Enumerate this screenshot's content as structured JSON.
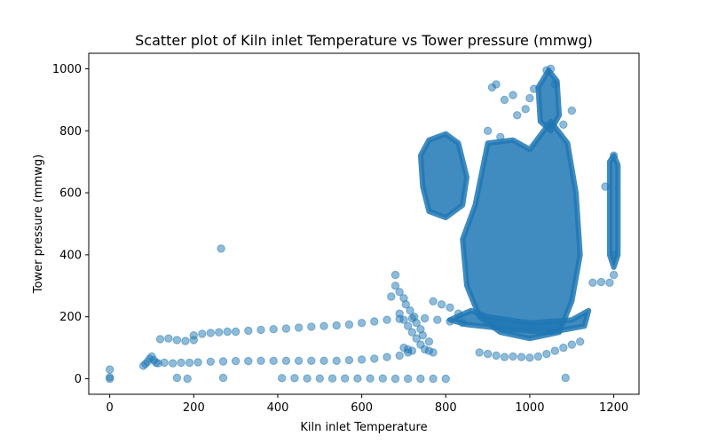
{
  "chart_data": {
    "type": "scatter",
    "title": "Scatter plot of Kiln inlet Temperature vs Tower pressure (mmwg)",
    "xlabel": "Kiln inlet Temperature",
    "ylabel": "Tower pressure (mmwg)",
    "xlim": [
      -50,
      1260
    ],
    "ylim": [
      -50,
      1050
    ],
    "xticks": [
      0,
      200,
      400,
      600,
      800,
      1000,
      1200
    ],
    "yticks": [
      0,
      200,
      400,
      600,
      800,
      1000
    ],
    "color": "#1f77b4",
    "alpha": 0.5,
    "grid": false,
    "legend": "none",
    "points": [
      {
        "x": 0,
        "y": 0
      },
      {
        "x": 0,
        "y": 30
      },
      {
        "x": 0,
        "y": 5
      },
      {
        "x": 265,
        "y": 420
      },
      {
        "x": 160,
        "y": 3
      },
      {
        "x": 185,
        "y": 0
      },
      {
        "x": 270,
        "y": 3
      },
      {
        "x": 80,
        "y": 42
      },
      {
        "x": 85,
        "y": 48
      },
      {
        "x": 90,
        "y": 55
      },
      {
        "x": 95,
        "y": 65
      },
      {
        "x": 100,
        "y": 72
      },
      {
        "x": 105,
        "y": 60
      },
      {
        "x": 110,
        "y": 52
      },
      {
        "x": 115,
        "y": 50
      },
      {
        "x": 130,
        "y": 52
      },
      {
        "x": 150,
        "y": 50
      },
      {
        "x": 170,
        "y": 52
      },
      {
        "x": 190,
        "y": 52
      },
      {
        "x": 210,
        "y": 53
      },
      {
        "x": 240,
        "y": 55
      },
      {
        "x": 270,
        "y": 56
      },
      {
        "x": 300,
        "y": 57
      },
      {
        "x": 330,
        "y": 57
      },
      {
        "x": 360,
        "y": 58
      },
      {
        "x": 390,
        "y": 58
      },
      {
        "x": 420,
        "y": 58
      },
      {
        "x": 450,
        "y": 58
      },
      {
        "x": 480,
        "y": 58
      },
      {
        "x": 510,
        "y": 58
      },
      {
        "x": 540,
        "y": 58
      },
      {
        "x": 570,
        "y": 60
      },
      {
        "x": 600,
        "y": 62
      },
      {
        "x": 630,
        "y": 65
      },
      {
        "x": 660,
        "y": 70
      },
      {
        "x": 690,
        "y": 75
      },
      {
        "x": 710,
        "y": 85
      },
      {
        "x": 120,
        "y": 128
      },
      {
        "x": 140,
        "y": 130
      },
      {
        "x": 160,
        "y": 125
      },
      {
        "x": 180,
        "y": 122
      },
      {
        "x": 200,
        "y": 125
      },
      {
        "x": 200,
        "y": 140
      },
      {
        "x": 220,
        "y": 145
      },
      {
        "x": 240,
        "y": 148
      },
      {
        "x": 260,
        "y": 150
      },
      {
        "x": 280,
        "y": 152
      },
      {
        "x": 300,
        "y": 152
      },
      {
        "x": 330,
        "y": 155
      },
      {
        "x": 360,
        "y": 158
      },
      {
        "x": 390,
        "y": 160
      },
      {
        "x": 420,
        "y": 162
      },
      {
        "x": 450,
        "y": 165
      },
      {
        "x": 480,
        "y": 168
      },
      {
        "x": 510,
        "y": 170
      },
      {
        "x": 540,
        "y": 172
      },
      {
        "x": 570,
        "y": 175
      },
      {
        "x": 600,
        "y": 180
      },
      {
        "x": 630,
        "y": 185
      },
      {
        "x": 660,
        "y": 190
      },
      {
        "x": 690,
        "y": 193
      },
      {
        "x": 720,
        "y": 195
      },
      {
        "x": 750,
        "y": 195
      },
      {
        "x": 780,
        "y": 190
      },
      {
        "x": 810,
        "y": 185
      },
      {
        "x": 840,
        "y": 180
      },
      {
        "x": 410,
        "y": 2
      },
      {
        "x": 440,
        "y": 2
      },
      {
        "x": 470,
        "y": 1
      },
      {
        "x": 500,
        "y": 1
      },
      {
        "x": 530,
        "y": 1
      },
      {
        "x": 560,
        "y": 1
      },
      {
        "x": 590,
        "y": 1
      },
      {
        "x": 620,
        "y": 1
      },
      {
        "x": 650,
        "y": 1
      },
      {
        "x": 680,
        "y": 0
      },
      {
        "x": 710,
        "y": 0
      },
      {
        "x": 740,
        "y": 0
      },
      {
        "x": 770,
        "y": 0
      },
      {
        "x": 800,
        "y": 0
      },
      {
        "x": 680,
        "y": 300
      },
      {
        "x": 690,
        "y": 280
      },
      {
        "x": 700,
        "y": 260
      },
      {
        "x": 705,
        "y": 240
      },
      {
        "x": 715,
        "y": 220
      },
      {
        "x": 725,
        "y": 200
      },
      {
        "x": 730,
        "y": 180
      },
      {
        "x": 740,
        "y": 160
      },
      {
        "x": 745,
        "y": 140
      },
      {
        "x": 760,
        "y": 120
      },
      {
        "x": 690,
        "y": 210
      },
      {
        "x": 700,
        "y": 190
      },
      {
        "x": 710,
        "y": 170
      },
      {
        "x": 720,
        "y": 150
      },
      {
        "x": 730,
        "y": 130
      },
      {
        "x": 740,
        "y": 110
      },
      {
        "x": 750,
        "y": 95
      },
      {
        "x": 760,
        "y": 90
      },
      {
        "x": 770,
        "y": 85
      },
      {
        "x": 680,
        "y": 335
      },
      {
        "x": 670,
        "y": 265
      },
      {
        "x": 700,
        "y": 100
      },
      {
        "x": 710,
        "y": 95
      },
      {
        "x": 720,
        "y": 90
      },
      {
        "x": 770,
        "y": 250
      },
      {
        "x": 790,
        "y": 240
      },
      {
        "x": 810,
        "y": 230
      },
      {
        "x": 830,
        "y": 210
      },
      {
        "x": 880,
        "y": 85
      },
      {
        "x": 900,
        "y": 80
      },
      {
        "x": 920,
        "y": 75
      },
      {
        "x": 940,
        "y": 70
      },
      {
        "x": 960,
        "y": 72
      },
      {
        "x": 980,
        "y": 70
      },
      {
        "x": 1000,
        "y": 68
      },
      {
        "x": 1020,
        "y": 72
      },
      {
        "x": 1040,
        "y": 80
      },
      {
        "x": 1060,
        "y": 90
      },
      {
        "x": 1080,
        "y": 100
      },
      {
        "x": 1100,
        "y": 110
      },
      {
        "x": 1120,
        "y": 120
      },
      {
        "x": 910,
        "y": 940
      },
      {
        "x": 920,
        "y": 950
      },
      {
        "x": 940,
        "y": 900
      },
      {
        "x": 960,
        "y": 915
      },
      {
        "x": 1010,
        "y": 935
      },
      {
        "x": 1040,
        "y": 995
      },
      {
        "x": 1050,
        "y": 1000
      },
      {
        "x": 1060,
        "y": 950
      },
      {
        "x": 1000,
        "y": 905
      },
      {
        "x": 900,
        "y": 800
      },
      {
        "x": 930,
        "y": 780
      },
      {
        "x": 970,
        "y": 850
      },
      {
        "x": 990,
        "y": 870
      },
      {
        "x": 1080,
        "y": 820
      },
      {
        "x": 1100,
        "y": 865
      },
      {
        "x": 1180,
        "y": 620
      },
      {
        "x": 1200,
        "y": 720
      },
      {
        "x": 1200,
        "y": 400
      },
      {
        "x": 1200,
        "y": 335
      },
      {
        "x": 1150,
        "y": 310
      },
      {
        "x": 1170,
        "y": 312
      },
      {
        "x": 1190,
        "y": 310
      },
      {
        "x": 1085,
        "y": 3
      }
    ]
  }
}
